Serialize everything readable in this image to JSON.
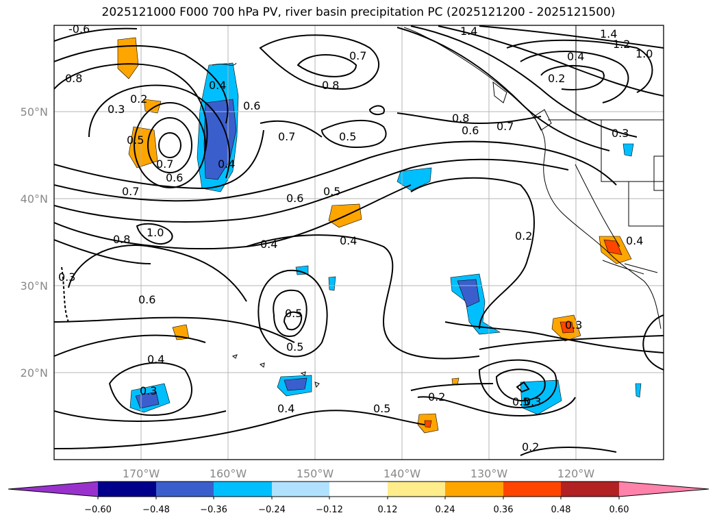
{
  "title": "2025121000 F000 700 hPa PV, river basin precipitation PC (2025121200 - 2025121500)",
  "axes": {
    "lat_labels": [
      "50°N",
      "40°N",
      "30°N",
      "20°N"
    ],
    "lon_labels": [
      "170°W",
      "160°W",
      "150°W",
      "140°W",
      "130°W",
      "120°W"
    ]
  },
  "contour_labels": [
    "-0.6",
    "1.4",
    "1.4",
    "1.2",
    "1.0",
    "0.4",
    "0.2",
    "0.7",
    "0.8",
    "0.8",
    "0.4",
    "0.6",
    "0.2",
    "0.3",
    "0.5",
    "0.7",
    "0.6",
    "0.7",
    "0.5",
    "0.8",
    "0.6",
    "0.7",
    "0.3",
    "0.4",
    "0.7",
    "0.6",
    "0.5",
    "1.0",
    "0.8",
    "0.4",
    "0.4",
    "0.2",
    "0.4",
    "0.3",
    "0.6",
    "0.5",
    "0.5",
    "0.3",
    "0.4",
    "0.3",
    "0.4",
    "0.2",
    "0.5",
    "0.5",
    "0.3",
    "0.2"
  ],
  "colorbar": {
    "ticks": [
      "−0.60",
      "−0.48",
      "−0.36",
      "−0.24",
      "−0.12",
      "0.12",
      "0.24",
      "0.36",
      "0.48",
      "0.60"
    ],
    "colors": [
      "#9932cc",
      "#00008b",
      "#3a5fcd",
      "#00bfff",
      "#b0e2ff",
      "#ffffff",
      "#ffec8b",
      "#ffa500",
      "#ff4500",
      "#b22222",
      "#ff82ab"
    ]
  },
  "fill_colors": {
    "neg_weak": "#b0e2ff",
    "neg_mid": "#00bfff",
    "neg_strong": "#3a5fcd",
    "pos_weak": "#ffec8b",
    "pos_mid": "#ffa500",
    "pos_strong": "#ff4500"
  }
}
